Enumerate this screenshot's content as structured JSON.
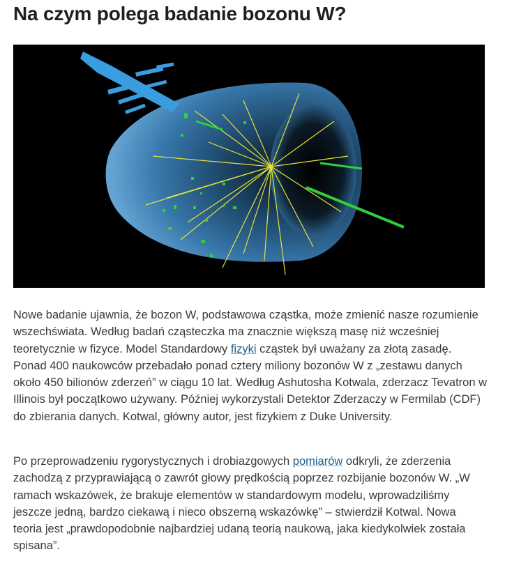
{
  "article": {
    "title": "Na czym polega badanie bozonu W?",
    "image": {
      "icon": "particle-collision-image"
    },
    "paragraph1": {
      "before_link": "Nowe badanie ujawnia, że bozon W, podstawowa cząstka, może zmienić nasze rozumienie wszechświata. Według badań cząsteczka ma znacznie większą masę niż wcześniej teoretycznie w fizyce. Model Standardowy ",
      "link_text": "fizyki",
      "after_link": " cząstek był uważany za złotą zasadę. Ponad 400 naukowców przebadało ponad cztery miliony bozonów W z „zestawu danych około 450 bilionów zderzeń” w ciągu 10 lat. Według Ashutosha Kotwala, zderzacz Tevatron w Illinois był początkowo używany. Później wykorzystali Detektor Zderzaczy w Fermilab (CDF) do zbierania danych. Kotwal, główny autor, jest fizykiem z Duke University."
    },
    "paragraph2": {
      "before_link": "Po przeprowadzeniu rygorystycznych i drobiazgowych ",
      "link_text": "pomiarów",
      "after_link": " odkryli, że zderzenia zachodzą z przyprawiającą o zawrót głowy prędkością poprzez rozbijanie bozonów W. „W ramach wskazówek, że brakuje elementów w standardowym modelu, wprowadziliśmy jeszcze jedną, bardzo ciekawą i nieco obszerną wskazówkę” – stwierdził Kotwal. Nowa teoria jest „prawdopodobnie najbardziej udaną teorią naukową, jaka kiedykolwiek została spisana”."
    },
    "colors": {
      "link": "#1f5f8b",
      "detector": "#5aa9e6",
      "tracks": "#e8e23a",
      "hits": "#2fd13a"
    }
  }
}
